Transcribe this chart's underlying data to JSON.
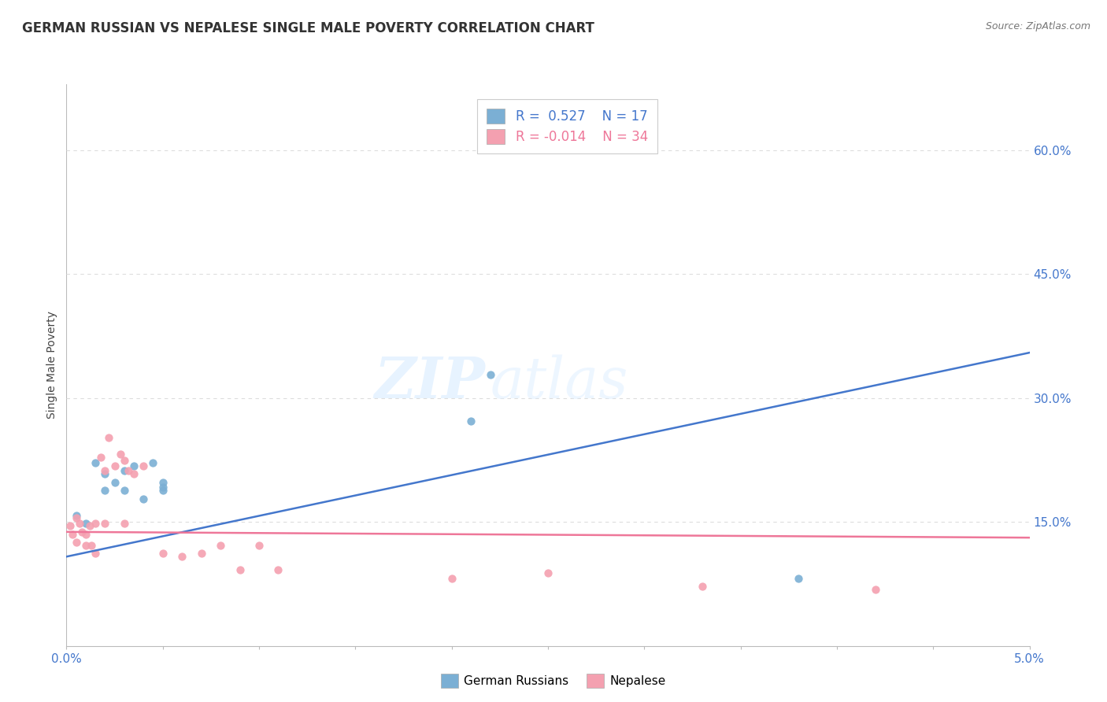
{
  "title": "GERMAN RUSSIAN VS NEPALESE SINGLE MALE POVERTY CORRELATION CHART",
  "source": "Source: ZipAtlas.com",
  "ylabel": "Single Male Poverty",
  "xlim": [
    0.0,
    0.05
  ],
  "ylim": [
    0.0,
    0.68
  ],
  "xticks": [
    0.0,
    0.005,
    0.01,
    0.015,
    0.02,
    0.025,
    0.03,
    0.035,
    0.04,
    0.045,
    0.05
  ],
  "xticklabels": [
    "0.0%",
    "",
    "",
    "",
    "",
    "",
    "",
    "",
    "",
    "",
    "5.0%"
  ],
  "yticks_right": [
    0.15,
    0.3,
    0.45,
    0.6
  ],
  "ytick_labels_right": [
    "15.0%",
    "30.0%",
    "45.0%",
    "60.0%"
  ],
  "blue_color": "#7BAFD4",
  "pink_color": "#F4A0B0",
  "blue_line_color": "#4477CC",
  "pink_line_color": "#EE7799",
  "grid_color": "#DDDDDD",
  "blue_R": 0.527,
  "blue_N": 17,
  "pink_R": -0.014,
  "pink_N": 34,
  "german_russian_x": [
    0.0005,
    0.001,
    0.0015,
    0.002,
    0.002,
    0.0025,
    0.003,
    0.003,
    0.0035,
    0.004,
    0.0045,
    0.005,
    0.005,
    0.005,
    0.021,
    0.022,
    0.038
  ],
  "german_russian_y": [
    0.158,
    0.148,
    0.222,
    0.208,
    0.188,
    0.198,
    0.188,
    0.212,
    0.218,
    0.178,
    0.222,
    0.198,
    0.192,
    0.188,
    0.272,
    0.328,
    0.082
  ],
  "nepalese_x": [
    0.0002,
    0.0003,
    0.0005,
    0.0005,
    0.0007,
    0.0008,
    0.001,
    0.001,
    0.0012,
    0.0013,
    0.0015,
    0.0015,
    0.0018,
    0.002,
    0.002,
    0.0022,
    0.0025,
    0.0028,
    0.003,
    0.003,
    0.0032,
    0.0035,
    0.004,
    0.005,
    0.006,
    0.007,
    0.008,
    0.009,
    0.01,
    0.011,
    0.02,
    0.025,
    0.033,
    0.042
  ],
  "nepalese_y": [
    0.145,
    0.135,
    0.155,
    0.125,
    0.148,
    0.138,
    0.135,
    0.122,
    0.145,
    0.122,
    0.148,
    0.112,
    0.228,
    0.148,
    0.212,
    0.252,
    0.218,
    0.232,
    0.225,
    0.148,
    0.212,
    0.208,
    0.218,
    0.112,
    0.108,
    0.112,
    0.122,
    0.092,
    0.122,
    0.092,
    0.082,
    0.088,
    0.072,
    0.068
  ],
  "watermark_text": "ZIP",
  "watermark_text2": "atlas",
  "blue_line_x": [
    0.0,
    0.05
  ],
  "blue_line_y": [
    0.108,
    0.355
  ],
  "pink_line_x": [
    0.0,
    0.05
  ],
  "pink_line_y": [
    0.138,
    0.131
  ]
}
